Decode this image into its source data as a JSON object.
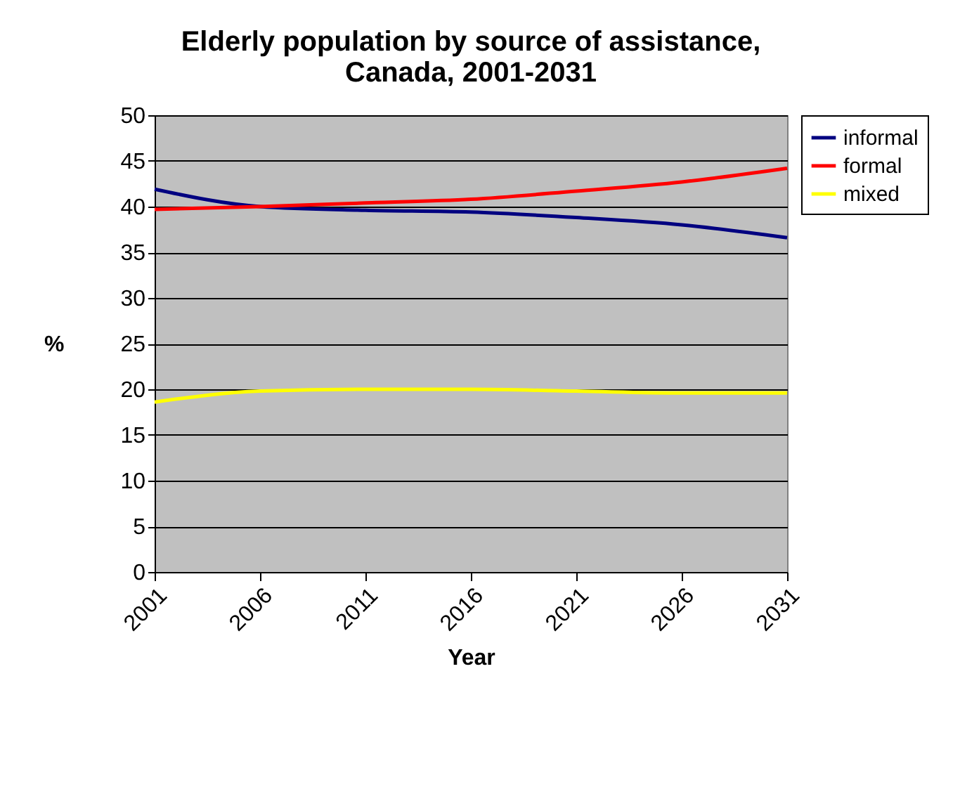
{
  "chart_data": {
    "type": "line",
    "title": [
      "Elderly population by source of assistance,",
      "Canada, 2001-2031"
    ],
    "xlabel": "Year",
    "ylabel": "%",
    "categories": [
      "2001",
      "2006",
      "2011",
      "2016",
      "2021",
      "2026",
      "2031"
    ],
    "series": [
      {
        "name": "informal",
        "color": "#000080",
        "values": [
          41.9,
          40.0,
          39.6,
          39.4,
          38.8,
          38.0,
          36.6
        ]
      },
      {
        "name": "formal",
        "color": "#ff0000",
        "values": [
          39.7,
          40.0,
          40.4,
          40.8,
          41.7,
          42.7,
          44.2
        ]
      },
      {
        "name": "mixed",
        "color": "#ffff00",
        "values": [
          18.6,
          19.8,
          20.0,
          20.0,
          19.8,
          19.6,
          19.6
        ]
      }
    ],
    "ylim": [
      0,
      50
    ],
    "yticks": [
      0,
      5,
      10,
      15,
      20,
      25,
      30,
      35,
      40,
      45,
      50
    ],
    "grid": "y",
    "legend": "right",
    "marker": "none",
    "line_style": "solid"
  }
}
